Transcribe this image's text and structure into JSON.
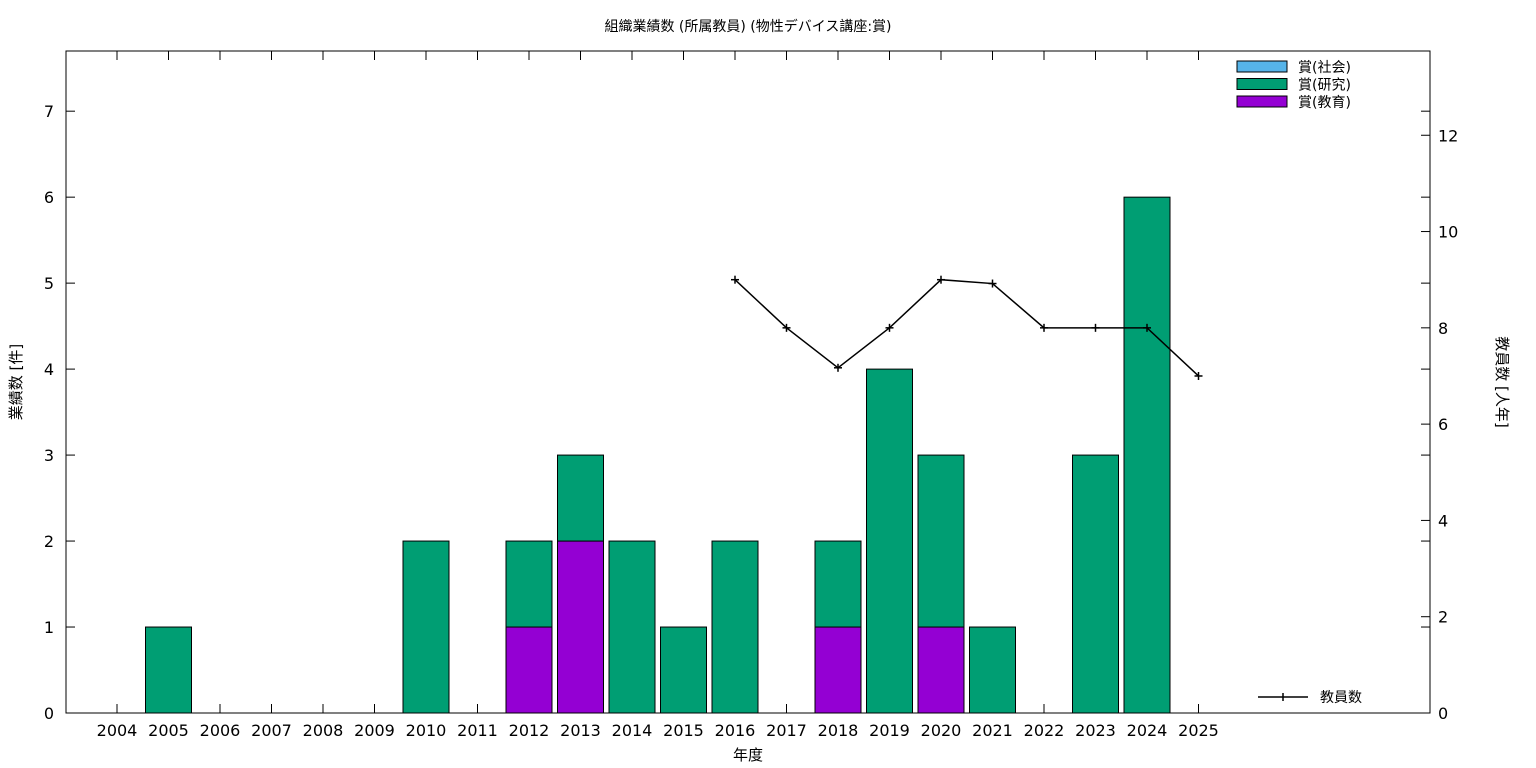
{
  "chart_data": {
    "type": "bar",
    "title": "組織業績数 (所属教員) (物性デバイス講座:賞)",
    "xlabel": "年度",
    "ylabel": "業績数 [件]",
    "y2label": "教員数 [人年]",
    "ylim": [
      0,
      7.7
    ],
    "y2lim": [
      0,
      13.75
    ],
    "yticks": [
      "0",
      "1",
      "2",
      "3",
      "4",
      "5",
      "6",
      "7"
    ],
    "y2ticks": [
      "0",
      "2",
      "4",
      "6",
      "8",
      "10",
      "12"
    ],
    "categories": [
      "2004",
      "2005",
      "2006",
      "2007",
      "2008",
      "2009",
      "2010",
      "2011",
      "2012",
      "2013",
      "2014",
      "2015",
      "2016",
      "2017",
      "2018",
      "2019",
      "2020",
      "2021",
      "2022",
      "2023",
      "2024",
      "2025"
    ],
    "stacked": true,
    "series": [
      {
        "name": "賞(教育)",
        "color": "#9400d3",
        "values": [
          0,
          0,
          0,
          0,
          0,
          0,
          0,
          0,
          1,
          2,
          0,
          0,
          0,
          0,
          1,
          0,
          1,
          0,
          0,
          0,
          0,
          0
        ]
      },
      {
        "name": "賞(研究)",
        "color": "#009e73",
        "values": [
          0,
          1,
          0,
          0,
          0,
          0,
          2,
          0,
          1,
          1,
          2,
          1,
          2,
          0,
          1,
          4,
          2,
          1,
          0,
          3,
          6,
          0
        ]
      },
      {
        "name": "賞(社会)",
        "color": "#56b4e9",
        "values": [
          0,
          0,
          0,
          0,
          0,
          0,
          0,
          0,
          0,
          0,
          0,
          0,
          0,
          0,
          0,
          0,
          0,
          0,
          0,
          0,
          0,
          0
        ]
      }
    ],
    "legend_order": [
      "賞(社会)",
      "賞(研究)",
      "賞(教育)"
    ],
    "legend_position": "top-right",
    "line_series": {
      "name": "教員数",
      "axis": "right",
      "color": "#000000",
      "points": [
        {
          "x": "2016",
          "y": 9.0
        },
        {
          "x": "2017",
          "y": 8.0
        },
        {
          "x": "2018",
          "y": 7.17
        },
        {
          "x": "2019",
          "y": 8.0
        },
        {
          "x": "2020",
          "y": 9.0
        },
        {
          "x": "2021",
          "y": 8.92
        },
        {
          "x": "2022",
          "y": 8.0
        },
        {
          "x": "2023",
          "y": 8.0
        },
        {
          "x": "2024",
          "y": 8.0
        },
        {
          "x": "2025",
          "y": 7.0
        }
      ]
    },
    "line_legend_position": "bottom-right"
  }
}
